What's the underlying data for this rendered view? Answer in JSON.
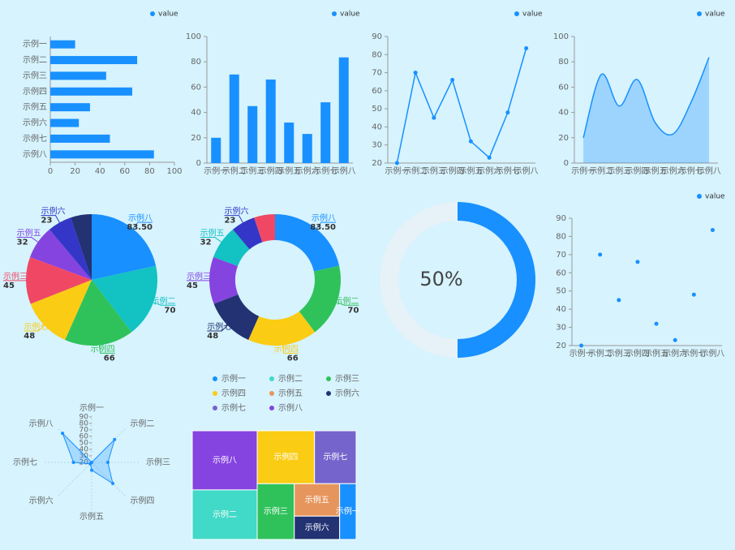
{
  "chart_data": [
    {
      "type": "hbar",
      "categories": [
        "示例一",
        "示例二",
        "示例三",
        "示例四",
        "示例五",
        "示例六",
        "示例七",
        "示例八"
      ],
      "series": [
        {
          "name": "value",
          "color": "#1890ff",
          "values": [
            20,
            70,
            45,
            66,
            32,
            23,
            48,
            83.5
          ]
        }
      ],
      "xlim": [
        0,
        100
      ],
      "xticks": [
        0,
        20,
        40,
        60,
        80,
        100
      ]
    },
    {
      "type": "bar",
      "categories": [
        "示例一",
        "示例二",
        "示例三",
        "示例四",
        "示例五",
        "示例六",
        "示例七",
        "示例八"
      ],
      "series": [
        {
          "name": "value",
          "color": "#1890ff",
          "values": [
            20,
            70,
            45,
            66,
            32,
            23,
            48,
            83.5
          ]
        }
      ],
      "ylim": [
        0,
        100
      ],
      "yticks": [
        0,
        20,
        40,
        60,
        80,
        100
      ]
    },
    {
      "type": "line",
      "categories": [
        "示例一",
        "示例二",
        "示例三",
        "示例四",
        "示例五",
        "示例六",
        "示例七",
        "示例八"
      ],
      "series": [
        {
          "name": "value",
          "color": "#1890ff",
          "values": [
            20,
            70,
            45,
            66,
            32,
            23,
            48,
            83.5
          ]
        }
      ],
      "ylim": [
        20,
        90
      ],
      "yticks": [
        20,
        30,
        40,
        50,
        60,
        70,
        80,
        90
      ]
    },
    {
      "type": "area",
      "categories": [
        "示例一",
        "示例二",
        "示例三",
        "示例四",
        "示例五",
        "示例六",
        "示例七",
        "示例八"
      ],
      "series": [
        {
          "name": "value",
          "color": "#1890ff",
          "values": [
            20,
            70,
            45,
            66,
            32,
            23,
            48,
            83.5
          ]
        }
      ],
      "ylim": [
        0,
        100
      ],
      "yticks": [
        0,
        20,
        40,
        60,
        80,
        100
      ]
    },
    {
      "type": "pie",
      "categories": [
        "示例八",
        "示例二",
        "示例四",
        "示例七",
        "示例三",
        "示例五",
        "示例六",
        "示例一"
      ],
      "values": [
        83.5,
        70,
        66,
        48,
        45,
        32,
        23,
        20
      ],
      "value_labels": [
        "83.50",
        "70",
        "66",
        "48",
        "45",
        "32",
        "23",
        null
      ],
      "colors": [
        "#1890ff",
        "#13c2c2",
        "#2fc25b",
        "#facc14",
        "#f04864",
        "#8543e0",
        "#3436c7",
        "#223273"
      ]
    },
    {
      "type": "donut",
      "categories": [
        "示例八",
        "示例二",
        "示例四",
        "示例七",
        "示例三",
        "示例五",
        "示例六",
        "示例一"
      ],
      "values": [
        83.5,
        70,
        66,
        48,
        45,
        32,
        23,
        20
      ],
      "value_labels": [
        "83.50",
        "70",
        "66",
        "48",
        "45",
        "32",
        "23",
        null
      ],
      "colors": [
        "#1890ff",
        "#2fc25b",
        "#facc14",
        "#223273",
        "#8543e0",
        "#13c2c2",
        "#3436c7",
        "#f04864"
      ]
    },
    {
      "type": "gauge",
      "value": 50,
      "value_label": "50%",
      "ylim": [
        0,
        100
      ],
      "color": "#1890ff"
    },
    {
      "type": "scatter",
      "categories": [
        "示例一",
        "示例二",
        "示例三",
        "示例四",
        "示例五",
        "示例六",
        "示例七",
        "示例八"
      ],
      "series": [
        {
          "name": "value",
          "color": "#1890ff",
          "values": [
            20,
            70,
            45,
            66,
            32,
            23,
            48,
            83.5
          ]
        }
      ],
      "ylim": [
        20,
        90
      ],
      "yticks": [
        20,
        30,
        40,
        50,
        60,
        70,
        80,
        90
      ]
    },
    {
      "type": "radar",
      "indicators": [
        "示例一",
        "示例二",
        "示例三",
        "示例四",
        "示例五",
        "示例六",
        "示例七",
        "示例八"
      ],
      "values": [
        20,
        70,
        45,
        66,
        32,
        23,
        48,
        83.5
      ],
      "color": "#1890ff",
      "rlim": [
        20,
        90
      ],
      "rticks": [
        20,
        30,
        40,
        50,
        60,
        70,
        80,
        90
      ]
    },
    {
      "type": "treemap",
      "categories": [
        "示例一",
        "示例二",
        "示例三",
        "示例四",
        "示例五",
        "示例六",
        "示例七",
        "示例八"
      ],
      "values": [
        20,
        70,
        45,
        66,
        32,
        23,
        48,
        83.5
      ],
      "colors": [
        "#1890ff",
        "#41d9c7",
        "#2fc25b",
        "#facc14",
        "#e6965c",
        "#223273",
        "#7564cc",
        "#8543e0"
      ]
    }
  ]
}
